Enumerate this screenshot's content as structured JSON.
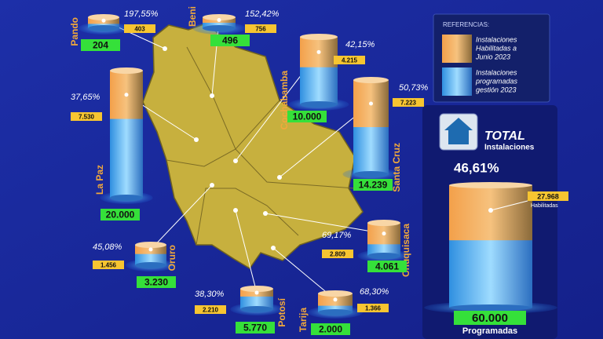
{
  "legend": {
    "title": "REFERENCIAS:",
    "habilitadas": [
      "Instalaciones",
      "Habilitadas a",
      "Junio 2023"
    ],
    "programadas": [
      "Instalaciones",
      "programadas",
      "gestión 2023"
    ]
  },
  "departments": [
    {
      "name": "Pando",
      "percent": "197,55%",
      "habilitadas": "403",
      "programadas": "204"
    },
    {
      "name": "Beni",
      "percent": "152,42%",
      "habilitadas": "756",
      "programadas": "496"
    },
    {
      "name": "Cochabamba",
      "percent": "42,15%",
      "habilitadas": "4.215",
      "programadas": "10.000"
    },
    {
      "name": "Santa Cruz",
      "percent": "50,73%",
      "habilitadas": "7.223",
      "programadas": "14.239"
    },
    {
      "name": "La Paz",
      "percent": "37,65%",
      "habilitadas": "7.530",
      "programadas": "20.000"
    },
    {
      "name": "Oruro",
      "percent": "45,08%",
      "habilitadas": "1.456",
      "programadas": "3.230"
    },
    {
      "name": "Chuquisaca",
      "percent": "69,17%",
      "habilitadas": "2.809",
      "programadas": "4.061"
    },
    {
      "name": "Potosí",
      "percent": "38,30%",
      "habilitadas": "2.210",
      "programadas": "5.770"
    },
    {
      "name": "Tarija",
      "percent": "68,30%",
      "habilitadas": "1.366",
      "programadas": "2.000"
    }
  ],
  "total": {
    "title": "TOTAL",
    "subtitle": "Instalaciones",
    "percent": "46,61%",
    "habilitadas": "27.968",
    "habilitadas_label": "Habilitadas",
    "programadas": "60.000",
    "programadas_label": "Programadas"
  }
}
